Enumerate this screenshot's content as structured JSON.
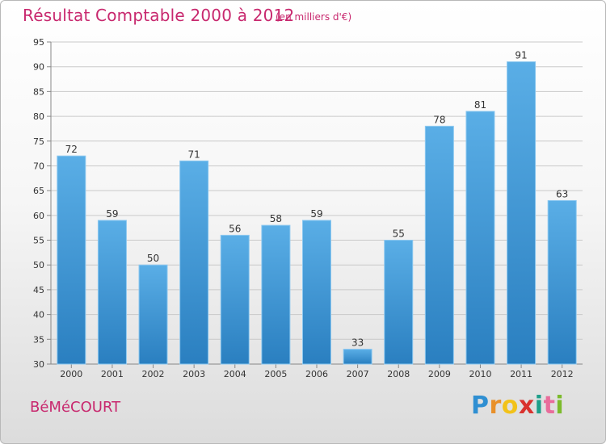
{
  "header": {
    "title": "Résultat Comptable 2000 à 2012",
    "subtitle": "(en milliers d'€)"
  },
  "footer": {
    "commune": "BéMéCOURT",
    "brand_letters": [
      "P",
      "r",
      "o",
      "x",
      "i",
      "t",
      "i"
    ],
    "brand_colors": [
      "#2f8fd2",
      "#e8902a",
      "#f2c219",
      "#d9322e",
      "#1e9f8a",
      "#e86d9b",
      "#7cbb2c"
    ]
  },
  "chart_data": {
    "type": "bar",
    "title": "Résultat Comptable 2000 à 2012",
    "subtitle": "(en milliers d'€)",
    "categories": [
      "2000",
      "2001",
      "2002",
      "2003",
      "2004",
      "2005",
      "2006",
      "2007",
      "2008",
      "2009",
      "2010",
      "2011",
      "2012"
    ],
    "values": [
      72,
      59,
      50,
      71,
      56,
      58,
      59,
      33,
      55,
      78,
      81,
      91,
      63
    ],
    "ylim": [
      30,
      95
    ],
    "yticks": [
      30,
      35,
      40,
      45,
      50,
      55,
      60,
      65,
      70,
      75,
      80,
      85,
      90,
      95
    ],
    "grid": true,
    "data_labels": true,
    "bar_color_top": "#5aaee6",
    "bar_color_bottom": "#2a7fc0",
    "text_color": "#333333"
  }
}
